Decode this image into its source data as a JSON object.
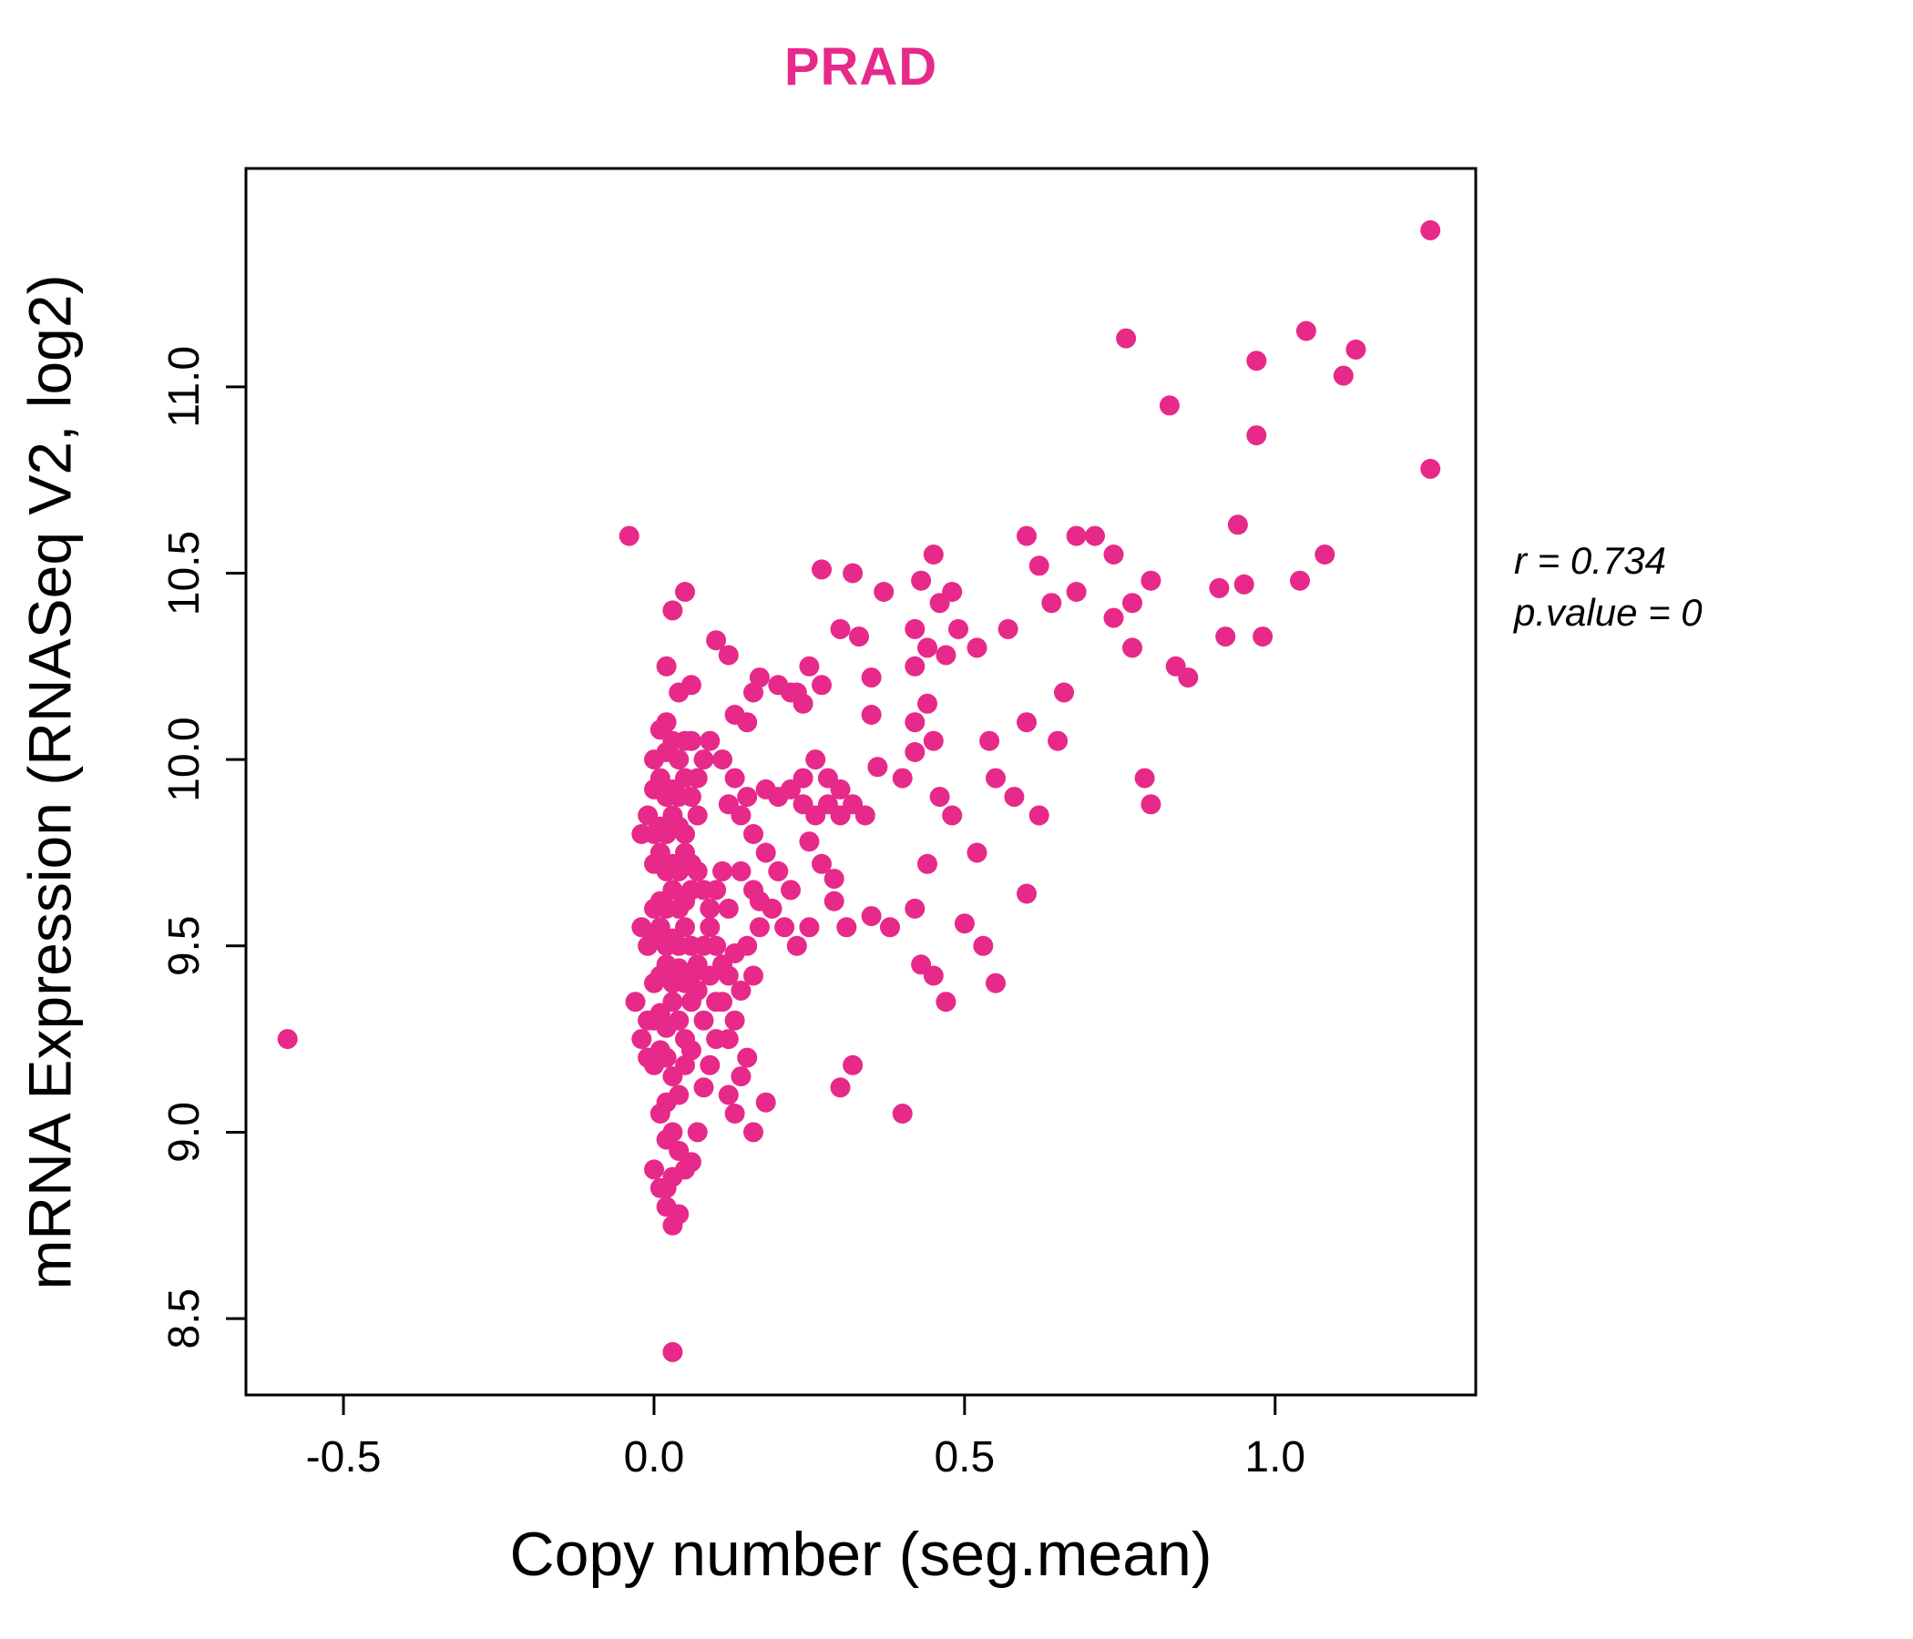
{
  "chart_data": {
    "type": "scatter",
    "title": "PRAD",
    "xlabel": "Copy number (seg.mean)",
    "ylabel": "mRNA Expression (RNASeq V2, log2)",
    "annotation": {
      "line1": "r = 0.734",
      "line2": "p.value = 0"
    },
    "x_ticks": [
      -0.5,
      0.0,
      0.5,
      1.0
    ],
    "x_tick_labels": [
      "-0.5",
      "0.0",
      "0.5",
      "1.0"
    ],
    "y_ticks": [
      8.5,
      9.0,
      9.5,
      10.0,
      10.5,
      11.0
    ],
    "y_tick_labels": [
      "8.5",
      "9.0",
      "9.5",
      "10.0",
      "10.5",
      "11.0"
    ],
    "xlim": [
      -0.657,
      1.323
    ],
    "ylim": [
      8.295,
      11.586
    ],
    "grid": false,
    "legend": "none",
    "colors": {
      "points": "#E7298A",
      "title": "#E7298A",
      "axis": "#000000",
      "text": "#000000"
    },
    "marker": {
      "shape": "circle",
      "radius_px": 11
    },
    "points": [
      [
        -0.59,
        9.25
      ],
      [
        0.03,
        8.41
      ],
      [
        -0.04,
        10.6
      ],
      [
        1.25,
        11.42
      ],
      [
        1.25,
        10.78
      ],
      [
        1.13,
        11.1
      ],
      [
        1.11,
        11.03
      ],
      [
        1.05,
        11.15
      ],
      [
        0.97,
        11.07
      ],
      [
        0.76,
        11.13
      ],
      [
        0.97,
        10.87
      ],
      [
        0.83,
        10.95
      ],
      [
        0.94,
        10.63
      ],
      [
        1.08,
        10.55
      ],
      [
        1.04,
        10.48
      ],
      [
        0.98,
        10.33
      ],
      [
        0.92,
        10.33
      ],
      [
        0.91,
        10.46
      ],
      [
        0.95,
        10.47
      ],
      [
        0.86,
        10.22
      ],
      [
        0.8,
        10.48
      ],
      [
        0.84,
        10.25
      ],
      [
        0.68,
        10.6
      ],
      [
        0.71,
        10.6
      ],
      [
        0.74,
        10.55
      ],
      [
        0.68,
        10.45
      ],
      [
        0.64,
        10.42
      ],
      [
        0.62,
        10.52
      ],
      [
        0.6,
        10.6
      ],
      [
        0.57,
        10.35
      ],
      [
        0.77,
        10.3
      ],
      [
        0.74,
        10.38
      ],
      [
        0.77,
        10.42
      ],
      [
        0.66,
        10.18
      ],
      [
        0.6,
        10.1
      ],
      [
        0.79,
        9.95
      ],
      [
        0.8,
        9.88
      ],
      [
        0.62,
        9.85
      ],
      [
        0.6,
        9.64
      ],
      [
        0.65,
        10.05
      ],
      [
        0.58,
        9.9
      ],
      [
        0.45,
        10.55
      ],
      [
        0.48,
        10.45
      ],
      [
        0.43,
        10.48
      ],
      [
        0.46,
        10.42
      ],
      [
        0.49,
        10.35
      ],
      [
        0.37,
        10.45
      ],
      [
        0.32,
        10.5
      ],
      [
        0.27,
        10.51
      ],
      [
        0.42,
        10.35
      ],
      [
        0.35,
        10.22
      ],
      [
        0.42,
        10.25
      ],
      [
        0.44,
        10.3
      ],
      [
        0.47,
        10.28
      ],
      [
        0.52,
        10.3
      ],
      [
        0.35,
        10.12
      ],
      [
        0.42,
        10.1
      ],
      [
        0.44,
        10.15
      ],
      [
        0.42,
        10.02
      ],
      [
        0.45,
        10.05
      ],
      [
        0.4,
        9.95
      ],
      [
        0.36,
        9.98
      ],
      [
        0.54,
        10.05
      ],
      [
        0.55,
        9.95
      ],
      [
        0.46,
        9.9
      ],
      [
        0.48,
        9.85
      ],
      [
        0.52,
        9.75
      ],
      [
        0.44,
        9.72
      ],
      [
        0.42,
        9.6
      ],
      [
        0.35,
        9.58
      ],
      [
        0.31,
        9.55
      ],
      [
        0.38,
        9.55
      ],
      [
        0.43,
        9.45
      ],
      [
        0.45,
        9.42
      ],
      [
        0.29,
        9.62
      ],
      [
        0.4,
        9.05
      ],
      [
        0.3,
        9.12
      ],
      [
        0.27,
        10.2
      ],
      [
        0.25,
        10.25
      ],
      [
        0.3,
        10.35
      ],
      [
        0.33,
        10.33
      ],
      [
        0.24,
        10.15
      ],
      [
        0.22,
        10.18
      ],
      [
        0.55,
        9.4
      ],
      [
        0.47,
        9.35
      ],
      [
        0.5,
        9.56
      ],
      [
        0.53,
        9.5
      ],
      [
        0.32,
        9.18
      ],
      [
        0.15,
        10.1
      ],
      [
        0.13,
        10.12
      ],
      [
        0.17,
        10.22
      ],
      [
        0.16,
        10.18
      ],
      [
        0.2,
        10.2
      ],
      [
        0.23,
        10.18
      ],
      [
        0.18,
        9.92
      ],
      [
        0.2,
        9.9
      ],
      [
        0.22,
        9.92
      ],
      [
        0.24,
        9.88
      ],
      [
        0.26,
        9.85
      ],
      [
        0.28,
        9.88
      ],
      [
        0.3,
        9.85
      ],
      [
        0.25,
        9.78
      ],
      [
        0.27,
        9.72
      ],
      [
        0.29,
        9.68
      ],
      [
        0.24,
        9.95
      ],
      [
        0.26,
        10.0
      ],
      [
        0.28,
        9.95
      ],
      [
        0.3,
        9.92
      ],
      [
        0.32,
        9.88
      ],
      [
        0.34,
        9.85
      ],
      [
        0.13,
        9.95
      ],
      [
        0.15,
        9.9
      ],
      [
        0.14,
        9.85
      ],
      [
        0.16,
        9.8
      ],
      [
        0.18,
        9.75
      ],
      [
        0.2,
        9.7
      ],
      [
        0.22,
        9.65
      ],
      [
        0.19,
        9.6
      ],
      [
        0.17,
        9.62
      ],
      [
        0.21,
        9.55
      ],
      [
        0.23,
        9.5
      ],
      [
        0.25,
        9.55
      ],
      [
        0.0,
        9.3
      ],
      [
        0.01,
        9.32
      ],
      [
        0.02,
        9.28
      ],
      [
        0.03,
        9.35
      ],
      [
        0.04,
        9.3
      ],
      [
        0.05,
        9.25
      ],
      [
        0.02,
        9.2
      ],
      [
        0.01,
        9.22
      ],
      [
        0.0,
        9.18
      ],
      [
        0.03,
        9.15
      ],
      [
        0.05,
        9.18
      ],
      [
        0.06,
        9.22
      ],
      [
        0.04,
        9.1
      ],
      [
        0.02,
        9.08
      ],
      [
        0.01,
        9.05
      ],
      [
        0.03,
        9.0
      ],
      [
        0.02,
        8.98
      ],
      [
        0.04,
        8.95
      ],
      [
        0.05,
        8.9
      ],
      [
        0.03,
        8.88
      ],
      [
        0.02,
        8.85
      ],
      [
        0.04,
        8.78
      ],
      [
        0.03,
        8.75
      ],
      [
        0.06,
        8.92
      ],
      [
        0.07,
        9.0
      ],
      [
        0.08,
        9.12
      ],
      [
        0.09,
        9.18
      ],
      [
        0.1,
        9.25
      ],
      [
        0.12,
        9.1
      ],
      [
        0.13,
        9.05
      ],
      [
        0.15,
        9.2
      ],
      [
        0.14,
        9.15
      ],
      [
        0.18,
        9.08
      ],
      [
        0.16,
        9.0
      ],
      [
        0.0,
        9.4
      ],
      [
        0.01,
        9.42
      ],
      [
        0.02,
        9.45
      ],
      [
        0.03,
        9.4
      ],
      [
        0.04,
        9.44
      ],
      [
        0.05,
        9.4
      ],
      [
        0.06,
        9.42
      ],
      [
        0.07,
        9.45
      ],
      [
        0.02,
        9.5
      ],
      [
        0.03,
        9.52
      ],
      [
        0.04,
        9.5
      ],
      [
        0.05,
        9.55
      ],
      [
        0.06,
        9.5
      ],
      [
        0.01,
        9.55
      ],
      [
        0.0,
        9.52
      ],
      [
        -0.01,
        9.5
      ],
      [
        -0.02,
        9.55
      ],
      [
        0.08,
        9.5
      ],
      [
        0.09,
        9.55
      ],
      [
        0.1,
        9.5
      ],
      [
        0.11,
        9.45
      ],
      [
        0.12,
        9.42
      ],
      [
        0.13,
        9.48
      ],
      [
        0.15,
        9.5
      ],
      [
        0.17,
        9.55
      ],
      [
        0.14,
        9.38
      ],
      [
        0.16,
        9.42
      ],
      [
        0.0,
        9.6
      ],
      [
        0.01,
        9.62
      ],
      [
        0.02,
        9.6
      ],
      [
        0.03,
        9.65
      ],
      [
        0.04,
        9.6
      ],
      [
        0.05,
        9.62
      ],
      [
        0.06,
        9.65
      ],
      [
        0.02,
        9.7
      ],
      [
        0.03,
        9.72
      ],
      [
        0.04,
        9.7
      ],
      [
        0.01,
        9.75
      ],
      [
        0.0,
        9.72
      ],
      [
        0.05,
        9.75
      ],
      [
        0.06,
        9.72
      ],
      [
        0.07,
        9.7
      ],
      [
        0.08,
        9.65
      ],
      [
        0.09,
        9.6
      ],
      [
        0.1,
        9.65
      ],
      [
        0.12,
        9.6
      ],
      [
        0.11,
        9.7
      ],
      [
        0.0,
        9.8
      ],
      [
        0.01,
        9.82
      ],
      [
        0.02,
        9.8
      ],
      [
        0.03,
        9.85
      ],
      [
        0.04,
        9.82
      ],
      [
        0.05,
        9.8
      ],
      [
        0.02,
        9.9
      ],
      [
        0.03,
        9.92
      ],
      [
        0.04,
        9.9
      ],
      [
        0.01,
        9.95
      ],
      [
        0.0,
        9.92
      ],
      [
        0.05,
        9.95
      ],
      [
        0.06,
        9.9
      ],
      [
        0.07,
        9.85
      ],
      [
        -0.01,
        9.85
      ],
      [
        -0.02,
        9.8
      ],
      [
        0.0,
        10.0
      ],
      [
        0.02,
        10.02
      ],
      [
        0.03,
        10.05
      ],
      [
        0.01,
        10.08
      ],
      [
        0.04,
        10.0
      ],
      [
        0.05,
        10.05
      ],
      [
        0.02,
        10.1
      ],
      [
        0.03,
        10.4
      ],
      [
        0.05,
        10.45
      ],
      [
        0.02,
        10.25
      ],
      [
        0.04,
        10.18
      ],
      [
        0.06,
        10.2
      ],
      [
        0.1,
        10.32
      ],
      [
        0.12,
        10.28
      ],
      [
        0.09,
        10.05
      ],
      [
        0.11,
        10.0
      ],
      [
        0.1,
        9.35
      ],
      [
        0.08,
        9.3
      ],
      [
        0.07,
        9.38
      ],
      [
        0.06,
        9.35
      ],
      [
        0.09,
        9.42
      ],
      [
        0.11,
        9.35
      ],
      [
        0.13,
        9.3
      ],
      [
        0.12,
        9.25
      ],
      [
        -0.01,
        9.3
      ],
      [
        -0.02,
        9.25
      ],
      [
        -0.01,
        9.2
      ],
      [
        -0.03,
        9.35
      ],
      [
        0.0,
        8.9
      ],
      [
        0.01,
        8.85
      ],
      [
        0.02,
        8.8
      ],
      [
        0.08,
        10.0
      ],
      [
        0.07,
        9.95
      ],
      [
        0.06,
        10.05
      ],
      [
        0.12,
        9.88
      ],
      [
        0.14,
        9.7
      ],
      [
        0.16,
        9.65
      ]
    ]
  }
}
